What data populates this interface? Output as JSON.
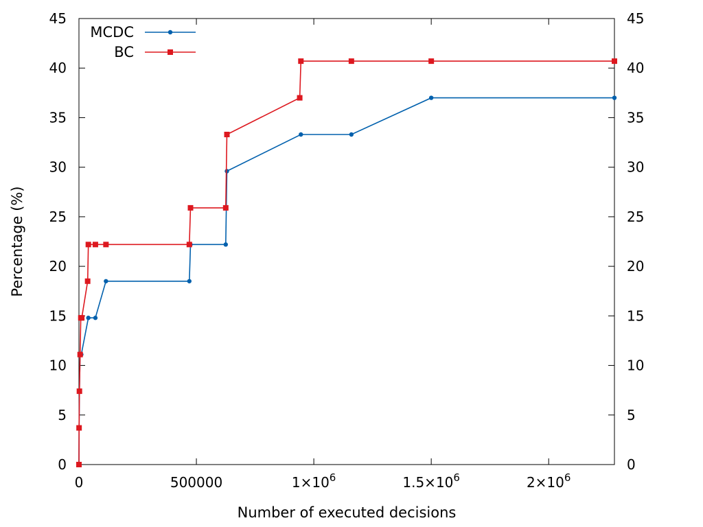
{
  "chart_data": {
    "type": "line",
    "title": "",
    "xlabel": "Number of executed decisions",
    "ylabel": "Percentage (%)",
    "xlim": [
      0,
      2280000
    ],
    "ylim": [
      0,
      45
    ],
    "grid": false,
    "legend_position": "top-left",
    "x_ticks": [
      {
        "value": 0,
        "label": "0"
      },
      {
        "value": 500000,
        "label": "500000"
      },
      {
        "value": 1000000,
        "label": "1×10",
        "exp": "6"
      },
      {
        "value": 1500000,
        "label": "1.5×10",
        "exp": "6"
      },
      {
        "value": 2000000,
        "label": "2×10",
        "exp": "6"
      }
    ],
    "y_ticks": [
      0,
      5,
      10,
      15,
      20,
      25,
      30,
      35,
      40,
      45
    ],
    "y_tick_labels": [
      "0",
      "5",
      "10",
      "15",
      "20",
      "25",
      "30",
      "35",
      "40",
      "45"
    ],
    "series": [
      {
        "name": "MCDC",
        "color": "#0060ad",
        "marker": "circle",
        "x": [
          0,
          500,
          2000,
          5000,
          10000,
          40000,
          70000,
          115000,
          470000,
          475000,
          625000,
          630000,
          945000,
          1160000,
          1500000,
          2280000
        ],
        "y": [
          0,
          3.7,
          7.4,
          11.1,
          11.1,
          14.8,
          14.8,
          18.5,
          18.5,
          22.2,
          22.2,
          29.6,
          33.3,
          33.3,
          37.0,
          37.0
        ]
      },
      {
        "name": "BC",
        "color": "#dd181f",
        "marker": "square",
        "x": [
          0,
          500,
          2000,
          5000,
          8000,
          12000,
          37000,
          40000,
          70000,
          115000,
          470000,
          475000,
          625000,
          630000,
          940000,
          945000,
          1160000,
          1500000,
          2280000
        ],
        "y": [
          0,
          3.7,
          7.4,
          11.1,
          14.8,
          14.8,
          18.5,
          22.2,
          22.2,
          22.2,
          22.2,
          25.9,
          25.9,
          33.3,
          37.0,
          40.7,
          40.7,
          40.7,
          40.7
        ]
      }
    ]
  }
}
